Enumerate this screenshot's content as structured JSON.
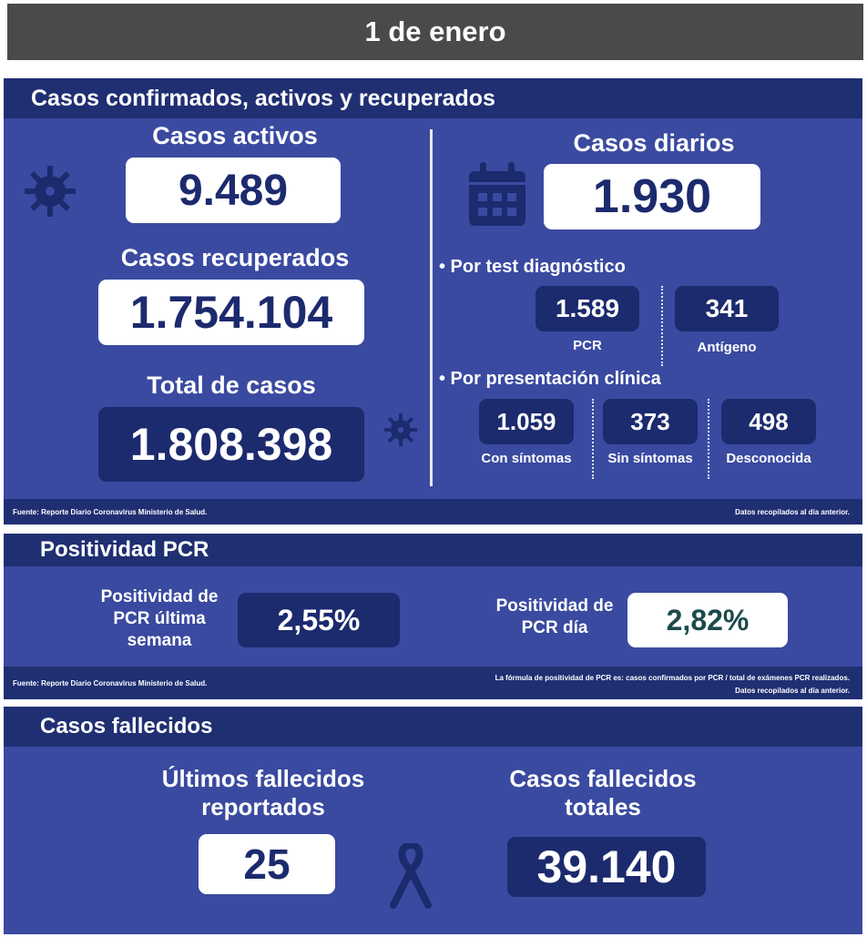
{
  "header": {
    "date": "1 de enero"
  },
  "confirmed": {
    "title": "Casos confirmados, activos y recuperados",
    "active": {
      "label": "Casos activos",
      "value": "9.489"
    },
    "recovered": {
      "label": "Casos recuperados",
      "value": "1.754.104"
    },
    "total": {
      "label": "Total de casos",
      "value": "1.808.398"
    },
    "daily": {
      "label": "Casos diarios",
      "value": "1.930"
    },
    "by_test": {
      "label": "• Por test diagnóstico",
      "pcr": {
        "value": "1.589",
        "label": "PCR"
      },
      "antigen": {
        "value": "341",
        "label": "Antígeno"
      }
    },
    "by_clinical": {
      "label": "• Por presentación clínica",
      "symptoms": {
        "value": "1.059",
        "label": "Con síntomas"
      },
      "no_symptoms": {
        "value": "373",
        "label": "Sin síntomas"
      },
      "unknown": {
        "value": "498",
        "label": "Desconocida"
      }
    },
    "source": "Fuente: Reporte Diario Coronavirus Ministerio de Salud.",
    "note": "Datos recopilados al día anterior."
  },
  "pcr": {
    "title": "Positividad PCR",
    "week": {
      "label": "Positividad de PCR última semana",
      "value": "2,55%"
    },
    "day": {
      "label": "Positividad de PCR día",
      "value": "2,82%"
    },
    "source": "Fuente: Reporte Diario Coronavirus Ministerio de Salud.",
    "formula": "La fórmula de positividad de PCR es: casos confirmados por PCR / total de exámenes PCR realizados.",
    "note": "Datos recopilados al día anterior."
  },
  "deaths": {
    "title": "Casos fallecidos",
    "latest": {
      "label": "Últimos fallecidos reportados",
      "value": "25"
    },
    "total": {
      "label": "Casos fallecidos totales",
      "value": "39.140"
    }
  },
  "colors": {
    "panel": "#3a4aa0",
    "panel_dark": "#1f2f72",
    "box_dark": "#1c2a6e",
    "header": "#4a4a4a",
    "pcr_day_text": "#1d4a4a"
  },
  "icons": [
    "virus-icon",
    "calendar-icon",
    "mourning-ribbon-icon"
  ]
}
